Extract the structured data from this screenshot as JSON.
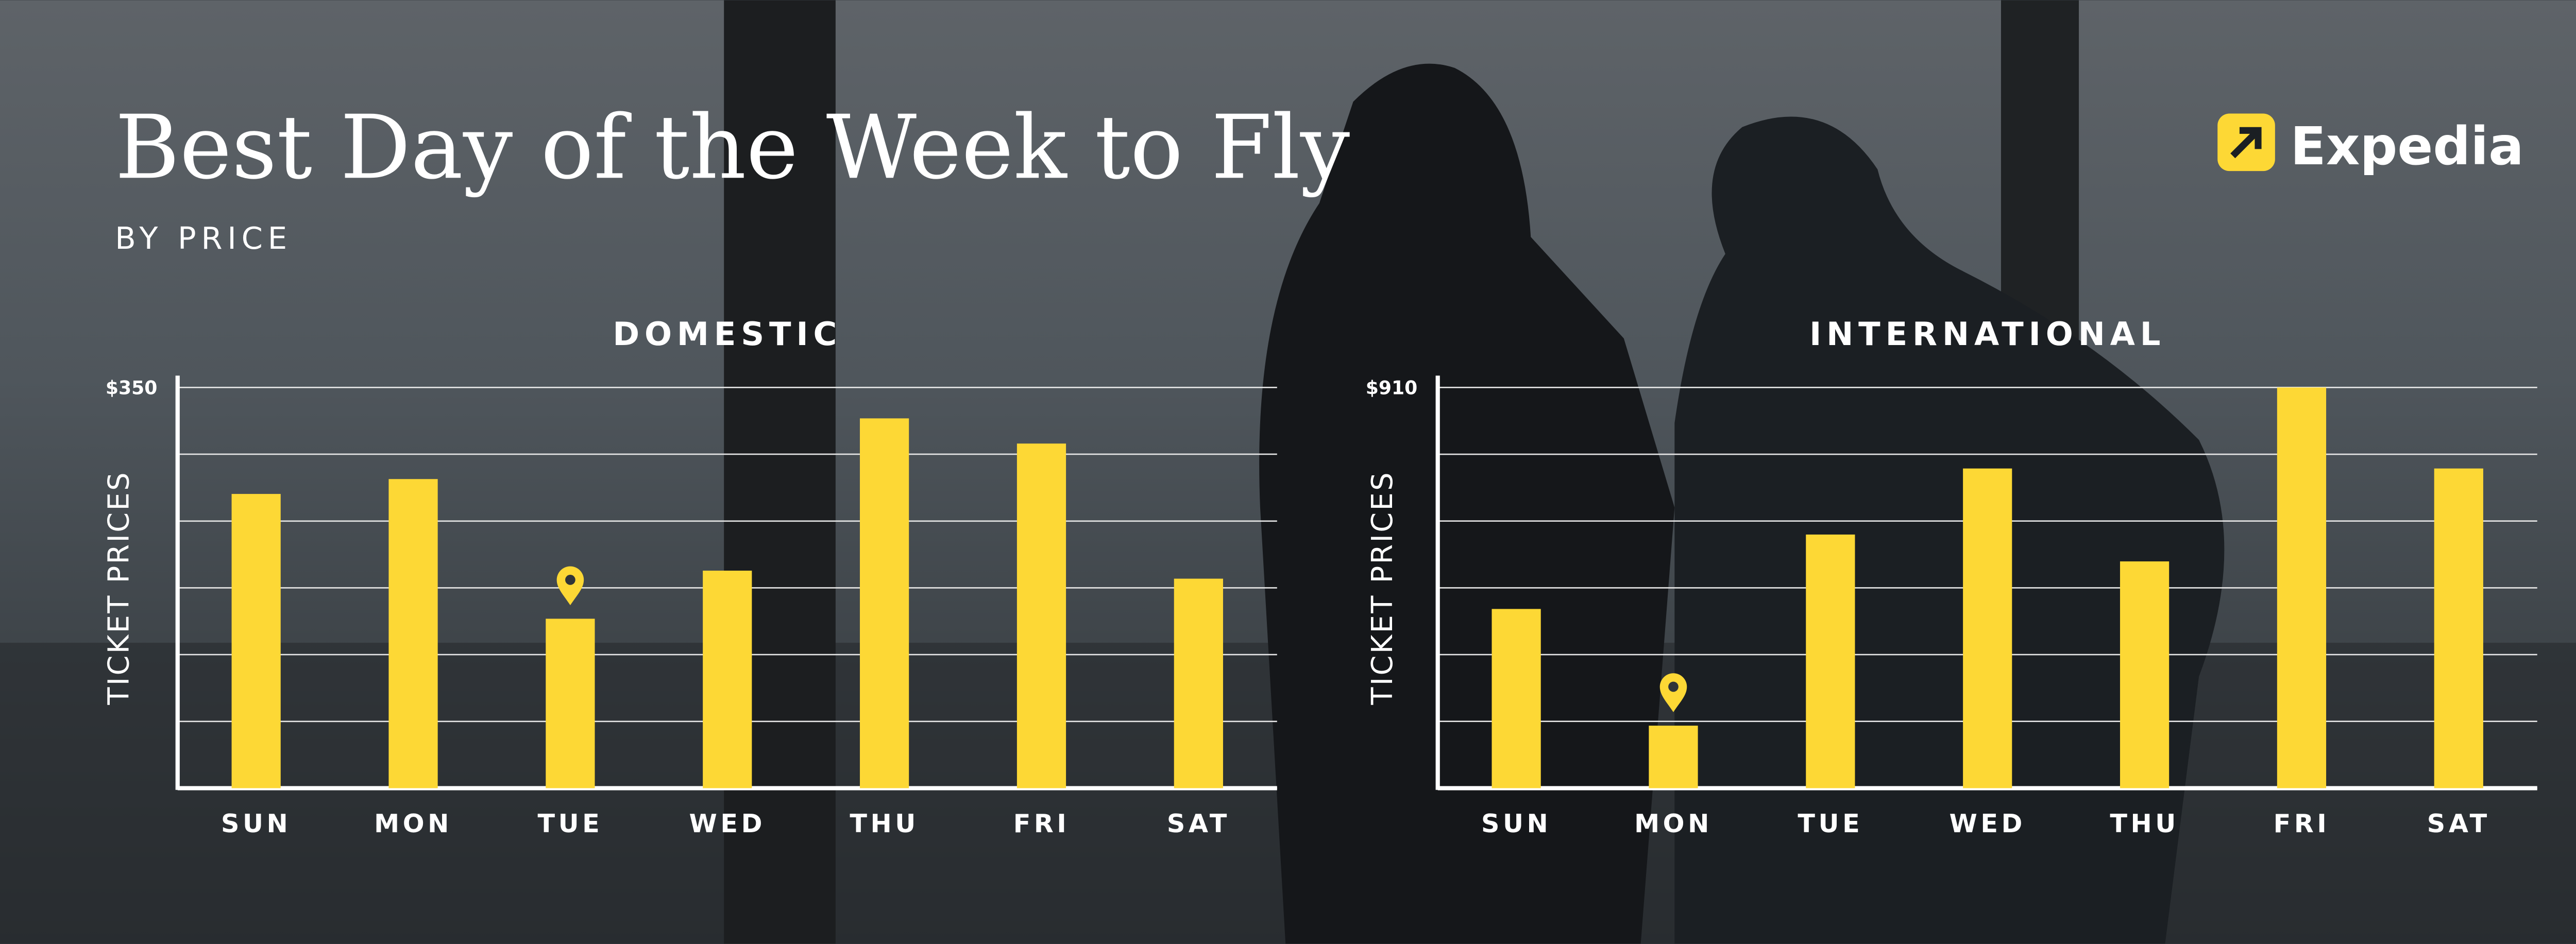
{
  "header": {
    "title": "Best Day of the Week to Fly",
    "subtitle": "BY PRICE",
    "brand": "Expedia"
  },
  "chart_data": [
    {
      "type": "bar",
      "title": "DOMESTIC",
      "y_label": "TICKET PRICES",
      "categories": [
        "SUN",
        "MON",
        "TUE",
        "WED",
        "THU",
        "FRI",
        "SAT"
      ],
      "values": [
        257,
        270,
        148,
        190,
        323,
        301,
        183
      ],
      "color": "#fdd835",
      "ylim": [
        0,
        350
      ],
      "yticks": [
        0,
        {
          "value": 58.3,
          "label": null
        },
        {
          "value": 116.7,
          "label": null
        },
        {
          "value": 175,
          "label": null
        },
        {
          "value": 233.3,
          "label": null
        },
        {
          "value": 291.7,
          "label": null
        },
        {
          "value": 350,
          "label": "$350"
        }
      ],
      "grid": true
    },
    {
      "type": "bar",
      "title": "INTERNATIONAL",
      "y_label": "TICKET PRICES",
      "categories": [
        "SUN",
        "MON",
        "TUE",
        "WED",
        "THU",
        "FRI",
        "SAT"
      ],
      "values": [
        407,
        142,
        576,
        726,
        515,
        910,
        726
      ],
      "color": "#fdd835",
      "ylim": [
        0,
        910
      ],
      "yticks": [
        0,
        {
          "value": 151.7,
          "label": null
        },
        {
          "value": 303.3,
          "label": null
        },
        {
          "value": 455,
          "label": null
        },
        {
          "value": 606.7,
          "label": null
        },
        {
          "value": 758.3,
          "label": null
        },
        {
          "value": 910,
          "label": "$910"
        }
      ],
      "grid": true
    }
  ]
}
